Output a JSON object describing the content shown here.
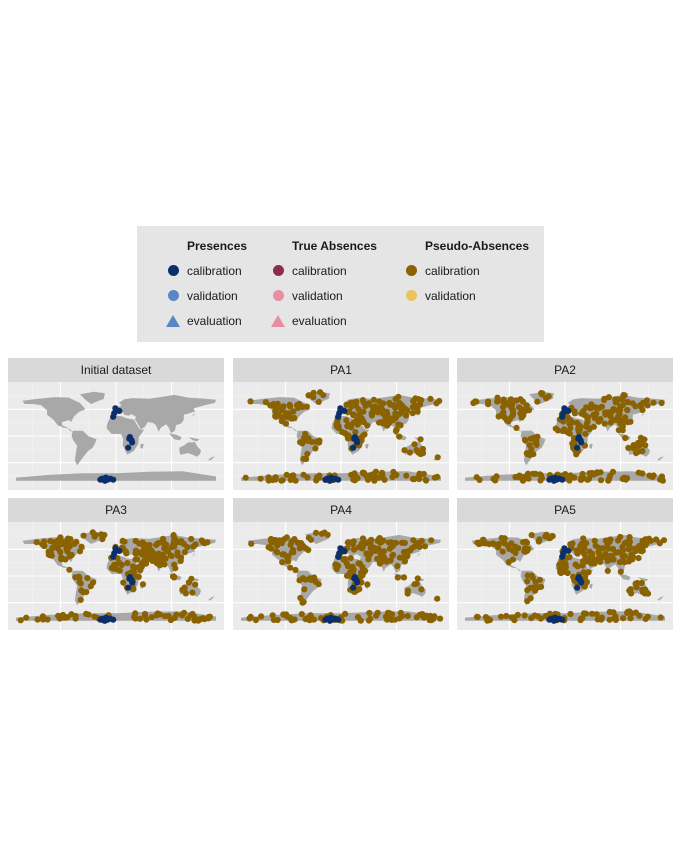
{
  "legend": {
    "groups": [
      {
        "title": "Presences",
        "items": [
          {
            "label": "calibration",
            "shape": "circle",
            "color": "#0b2f6b",
            "icon": "circle-marker-icon"
          },
          {
            "label": "validation",
            "shape": "circle",
            "color": "#5b86c4",
            "icon": "circle-marker-icon"
          },
          {
            "label": "evaluation",
            "shape": "triangle",
            "color": "#5b86c4",
            "icon": "triangle-marker-icon"
          }
        ]
      },
      {
        "title": "True Absences",
        "items": [
          {
            "label": "calibration",
            "shape": "circle",
            "color": "#8b2e4e",
            "icon": "circle-marker-icon"
          },
          {
            "label": "validation",
            "shape": "circle",
            "color": "#e88ea0",
            "icon": "circle-marker-icon"
          },
          {
            "label": "evaluation",
            "shape": "triangle",
            "color": "#e88ea0",
            "icon": "triangle-marker-icon"
          }
        ]
      },
      {
        "title": "Pseudo-Absences",
        "items": [
          {
            "label": "calibration",
            "shape": "circle",
            "color": "#8a6200",
            "icon": "circle-marker-icon"
          },
          {
            "label": "validation",
            "shape": "circle",
            "color": "#e8c45a",
            "icon": "circle-marker-icon"
          }
        ]
      }
    ]
  },
  "panels": [
    {
      "title": "Initial dataset"
    },
    {
      "title": "PA1"
    },
    {
      "title": "PA2"
    },
    {
      "title": "PA3"
    },
    {
      "title": "PA4"
    },
    {
      "title": "PA5"
    }
  ],
  "colors": {
    "presence_calibration": "#0b2f6b",
    "pseudo_absence_calibration": "#8a6200",
    "land": "#a8a8a8",
    "panel_background": "#ebebeb",
    "strip_background": "#d9d9d9",
    "gridline": "#ffffff"
  }
}
